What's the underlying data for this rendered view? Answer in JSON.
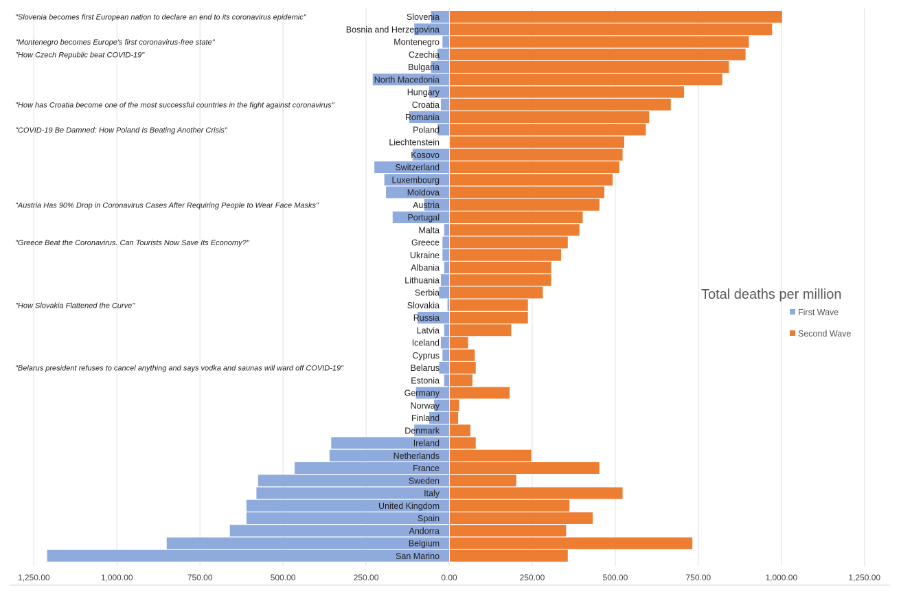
{
  "chart_data": {
    "type": "bar",
    "orientation": "horizontal",
    "legend_title": "Total deaths per million",
    "legend_position": "right",
    "grid": true,
    "xlim": [
      -1250,
      1250
    ],
    "x_ticks": [
      "1,250.00",
      "1,000.00",
      "750.00",
      "500.00",
      "250.00",
      "0.00",
      "250.00",
      "500.00",
      "750.00",
      "1,000.00",
      "1,250.00"
    ],
    "colors": {
      "first_wave": "#8faadc",
      "second_wave": "#ed7d31",
      "grid": "#e0e0e0"
    },
    "categories": [
      "Slovenia",
      "Bosnia and Herzegovina",
      "Montenegro",
      "Czechia",
      "Bulgaria",
      "North Macedonia",
      "Hungary",
      "Croatia",
      "Romania",
      "Poland",
      "Liechtenstein",
      "Kosovo",
      "Switzerland",
      "Luxembourg",
      "Moldova",
      "Austria",
      "Portugal",
      "Malta",
      "Greece",
      "Ukraine",
      "Albania",
      "Lithuania",
      "Serbia",
      "Slovakia",
      "Russia",
      "Latvia",
      "Iceland",
      "Cyprus",
      "Belarus",
      "Estonia",
      "Germany",
      "Norway",
      "Finland",
      "Denmark",
      "Ireland",
      "Netherlands",
      "France",
      "Sweden",
      "Italy",
      "United Kingdom",
      "Spain",
      "Andorra",
      "Belgium",
      "San Marino"
    ],
    "series": [
      {
        "name": "First Wave",
        "values": [
          55,
          105,
          20,
          35,
          55,
          230,
          60,
          25,
          120,
          35,
          0,
          110,
          225,
          195,
          190,
          75,
          170,
          15,
          20,
          20,
          15,
          25,
          30,
          5,
          95,
          15,
          25,
          20,
          30,
          15,
          100,
          45,
          60,
          105,
          355,
          360,
          465,
          575,
          580,
          610,
          610,
          660,
          850,
          1210
        ]
      },
      {
        "name": "Second Wave",
        "values": [
          1000,
          970,
          900,
          890,
          840,
          820,
          705,
          665,
          600,
          590,
          525,
          520,
          510,
          490,
          465,
          450,
          400,
          390,
          355,
          335,
          305,
          305,
          280,
          235,
          235,
          185,
          55,
          75,
          78,
          68,
          180,
          28,
          25,
          62,
          78,
          245,
          450,
          200,
          520,
          360,
          430,
          350,
          730,
          355
        ]
      }
    ],
    "annotations": [
      {
        "country": "Slovenia",
        "text": "\"Slovenia becomes first European nation to declare an end to its coronavirus epidemic\""
      },
      {
        "country": "Montenegro",
        "text": "\"Montenegro becomes Europe's first coronavirus-free state\""
      },
      {
        "country": "Czechia",
        "text": "\"How Czech Republic beat COVID-19\""
      },
      {
        "country": "Croatia",
        "text": "\"How has Croatia become one of the most successful countries in the fight against coronavirus\""
      },
      {
        "country": "Poland",
        "text": "\"COVID-19 Be Damned: How Poland Is Beating Another Crisis\""
      },
      {
        "country": "Austria",
        "text": "\"Austria Has 90% Drop in Coronavirus Cases After Requiring People to Wear Face Masks\""
      },
      {
        "country": "Greece",
        "text": "\"Greece Beat the Coronavirus. Can Tourists Now Save Its Economy?\""
      },
      {
        "country": "Slovakia",
        "text": "\"How Slovakia Flattened the Curve\""
      },
      {
        "country": "Belarus",
        "text": "\"Belarus president refuses to cancel anything and says vodka and saunas will ward off COVID-19\""
      }
    ]
  }
}
